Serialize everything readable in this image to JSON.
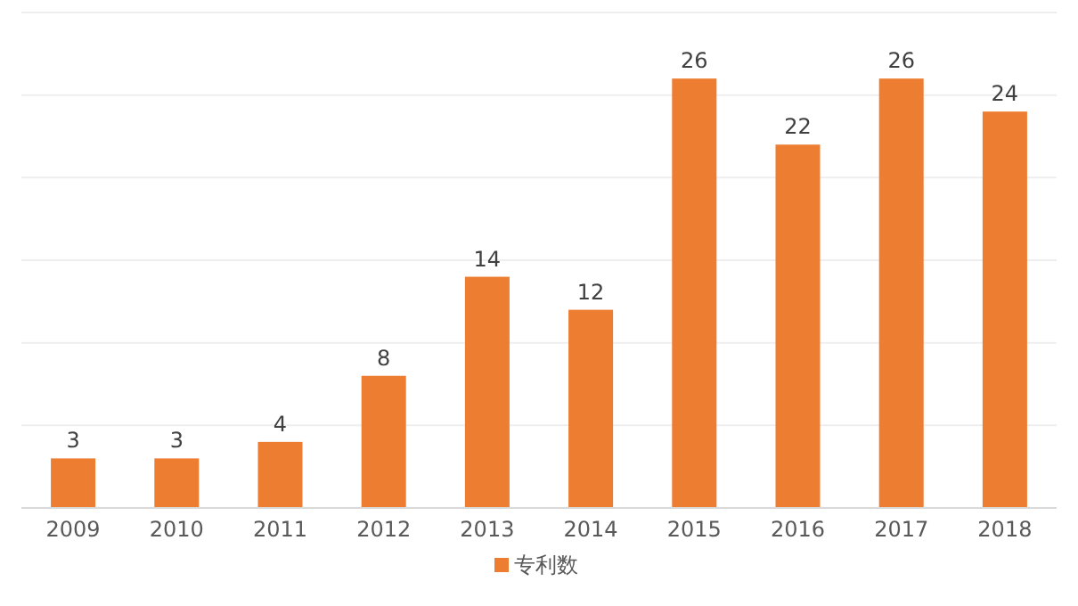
{
  "chart_data": {
    "type": "bar",
    "categories": [
      "2009",
      "2010",
      "2011",
      "2012",
      "2013",
      "2014",
      "2015",
      "2016",
      "2017",
      "2018"
    ],
    "series": [
      {
        "name": "专利数",
        "color": "#ed7d31",
        "values": [
          3,
          3,
          4,
          8,
          14,
          12,
          26,
          22,
          26,
          24
        ]
      }
    ],
    "ylim": [
      0,
      30
    ],
    "yticks": [
      0,
      5,
      10,
      15,
      20,
      25,
      30
    ],
    "grid": "y",
    "tick_labels": "x",
    "data_labels": true,
    "legend": "bottom"
  }
}
